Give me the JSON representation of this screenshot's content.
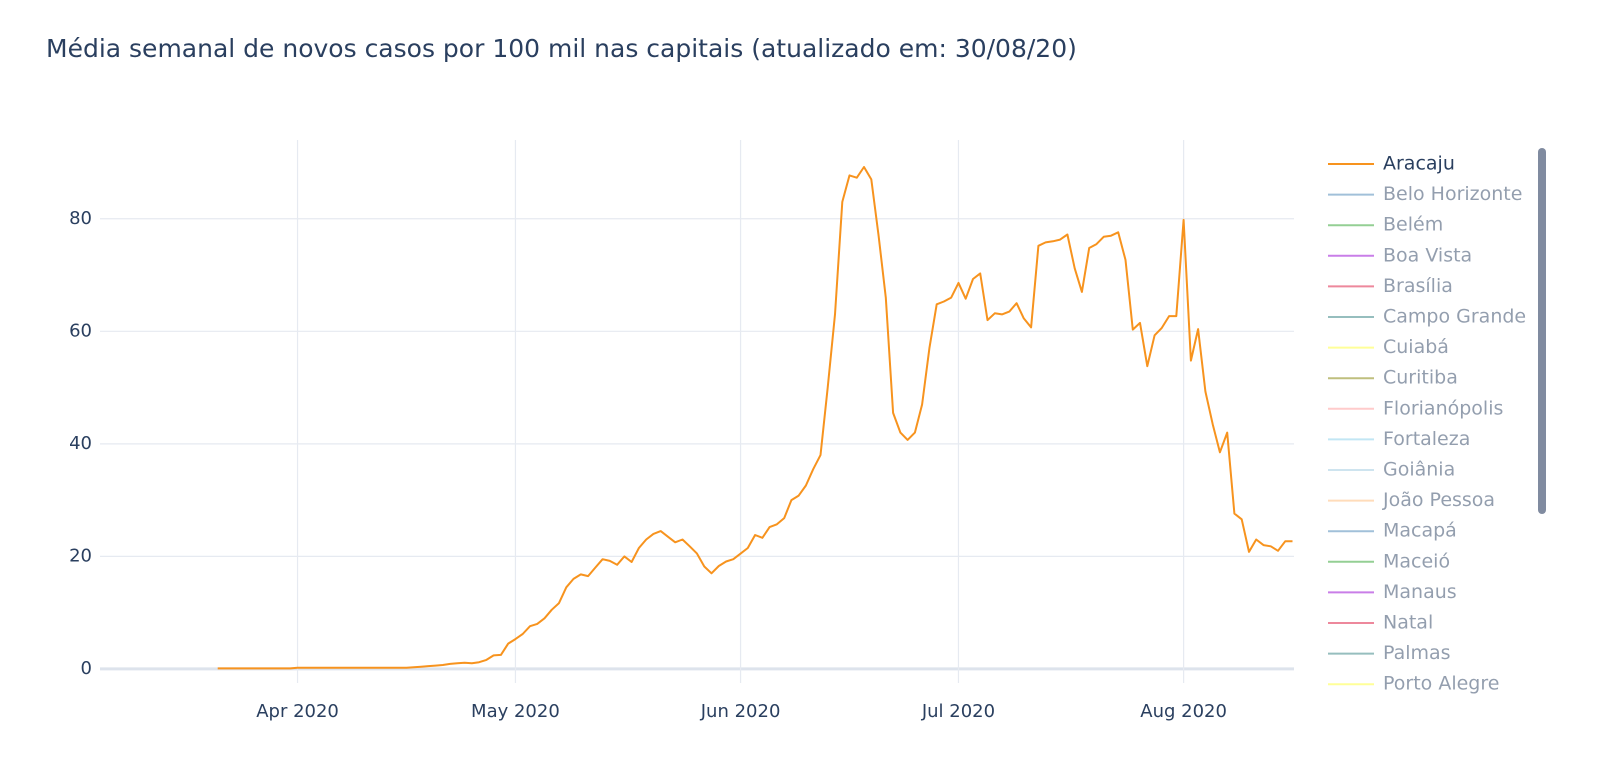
{
  "chart_data": {
    "type": "line",
    "title": "Média semanal de novos casos por 100 mil nas capitais (atualizado em: 30/08/20)",
    "x": [
      0,
      1,
      2,
      3,
      4,
      5,
      6,
      7,
      8,
      9,
      10,
      11,
      12,
      13,
      14,
      15,
      16,
      17,
      18,
      19,
      20,
      21,
      22,
      23,
      24,
      25,
      26,
      27,
      28,
      29,
      30,
      31,
      32,
      33,
      34,
      35,
      36,
      37,
      38,
      39,
      40,
      41,
      42,
      43,
      44,
      45,
      46,
      47,
      48,
      49,
      50,
      51,
      52,
      53,
      54,
      55,
      56,
      57,
      58,
      59,
      60,
      61,
      62,
      63,
      64,
      65,
      66,
      67,
      68,
      69,
      70,
      71,
      72,
      73,
      74,
      75,
      76,
      77,
      78,
      79,
      80,
      81,
      82,
      83,
      84,
      85,
      86,
      87,
      88,
      89,
      90,
      91,
      92,
      93,
      94,
      95,
      96,
      97,
      98,
      99,
      100,
      101,
      102,
      103,
      104,
      105,
      106,
      107,
      108,
      109,
      110,
      111,
      112,
      113,
      114,
      115,
      116,
      117,
      118,
      119,
      120,
      121,
      122,
      123,
      124,
      125,
      126,
      127,
      128,
      129,
      130,
      131,
      132,
      133,
      134,
      135,
      136,
      137,
      138,
      139,
      140,
      141,
      142,
      143,
      144,
      145,
      146,
      147,
      148
    ],
    "xlim": [
      -16.2,
      148.2
    ],
    "xticks": [
      {
        "value": 11,
        "label": "Apr 2020"
      },
      {
        "value": 41,
        "label": "May 2020"
      },
      {
        "value": 72,
        "label": "Jun 2020"
      },
      {
        "value": 102,
        "label": "Jul 2020"
      },
      {
        "value": 133,
        "label": "Aug 2020"
      }
    ],
    "ylim": [
      -2.5,
      94
    ],
    "yticks": [
      0,
      20,
      40,
      60,
      80
    ],
    "grid": true,
    "series": [
      {
        "name": "Aracaju",
        "color": "#f7931e",
        "visible": true,
        "values": [
          0.1,
          0.1,
          0.1,
          0.1,
          0.1,
          0.1,
          0.1,
          0.1,
          0.1,
          0.1,
          0.1,
          0.2,
          0.2,
          0.2,
          0.2,
          0.2,
          0.2,
          0.2,
          0.2,
          0.2,
          0.2,
          0.2,
          0.2,
          0.2,
          0.2,
          0.2,
          0.2,
          0.3,
          0.4,
          0.5,
          0.6,
          0.7,
          0.9,
          1.0,
          1.1,
          1.0,
          1.2,
          1.6,
          2.4,
          2.5,
          4.5,
          5.3,
          6.2,
          7.6,
          8,
          9,
          10.5,
          11.7,
          14.5,
          16,
          16.8,
          16.5,
          18,
          19.5,
          19.2,
          18.5,
          20,
          19,
          21.5,
          23,
          24,
          24.5,
          23.5,
          22.5,
          23,
          21.8,
          20.5,
          18.2,
          17,
          18.3,
          19.1,
          19.5,
          20.5,
          21.5,
          23.8,
          23.3,
          25.2,
          25.7,
          26.8,
          30,
          30.8,
          32.6,
          35.5,
          38,
          50,
          63,
          83,
          87.7,
          87.3,
          89.2,
          87,
          77,
          66,
          45.5,
          42,
          40.7,
          42,
          47,
          57,
          64.8,
          65.3,
          66,
          68.6,
          65.8,
          69.3,
          70.3,
          62,
          63.2,
          63,
          63.5,
          65,
          62.3,
          60.7,
          75.2,
          75.8,
          76,
          76.3,
          77.2,
          71.2,
          67,
          74.8,
          75.5,
          76.8,
          77,
          77.6,
          72.7,
          60.3,
          61.5,
          53.8,
          59.3,
          60.6,
          62.7,
          62.7,
          79.8,
          54.8,
          60.4,
          49.3,
          43.5,
          38.5,
          42,
          27.6,
          26.6,
          20.8,
          23,
          22,
          21.8,
          21,
          22.7,
          22.7
        ]
      },
      {
        "name": "Belo Horizonte",
        "color": "#4682b4",
        "visible": false
      },
      {
        "name": "Belém",
        "color": "#2ca02c",
        "visible": false
      },
      {
        "name": "Boa Vista",
        "color": "#9400d3",
        "visible": false
      },
      {
        "name": "Brasília",
        "color": "#dc143c",
        "visible": false
      },
      {
        "name": "Campo Grande",
        "color": "#2f7f7f",
        "visible": false
      },
      {
        "name": "Cuiabá",
        "color": "#ffff33",
        "visible": false
      },
      {
        "name": "Curitiba",
        "color": "#808000",
        "visible": false
      },
      {
        "name": "Florianópolis",
        "color": "#ff9999",
        "visible": false
      },
      {
        "name": "Fortaleza",
        "color": "#87ceeb",
        "visible": false
      },
      {
        "name": "Goiânia",
        "color": "#9ecae1",
        "visible": false
      },
      {
        "name": "João Pessoa",
        "color": "#ffbb78",
        "visible": false
      },
      {
        "name": "Macapá",
        "color": "#4682b4",
        "visible": false
      },
      {
        "name": "Maceió",
        "color": "#2ca02c",
        "visible": false
      },
      {
        "name": "Manaus",
        "color": "#9400d3",
        "visible": false
      },
      {
        "name": "Natal",
        "color": "#dc143c",
        "visible": false
      },
      {
        "name": "Palmas",
        "color": "#2f7f7f",
        "visible": false
      },
      {
        "name": "Porto Alegre",
        "color": "#ffff33",
        "visible": false
      }
    ]
  }
}
